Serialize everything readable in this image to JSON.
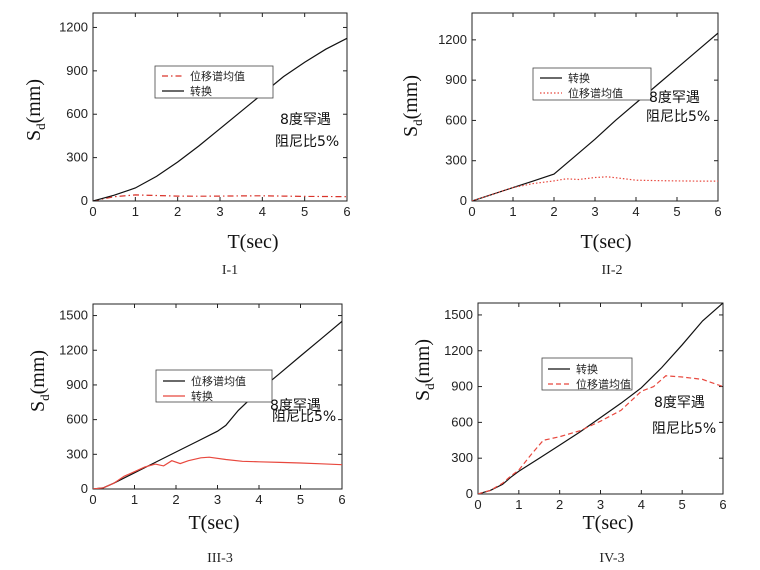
{
  "figure_title": "",
  "colors": {
    "black": "#111111",
    "red": "#e8483e",
    "red_dashdot": "#d9342b"
  },
  "chart_data": [
    {
      "type": "line",
      "caption": "I-1",
      "xlabel": "T(sec)",
      "ylabel": "Sd(mm)",
      "ylabel_main": "S",
      "ylabel_sub": "d",
      "ylabel_rest": "(mm)",
      "xlim": [
        0,
        6
      ],
      "ylim": [
        0,
        1300
      ],
      "xticks": [
        0,
        1,
        2,
        3,
        4,
        5,
        6
      ],
      "yticks": [
        0,
        300,
        600,
        900,
        1200
      ],
      "legend_position": "upper-left",
      "annotation": [
        "8度罕遇",
        "阻尼比5%"
      ],
      "series": [
        {
          "name": "位移谱均值",
          "style": "dashdot",
          "color": "#d9342b",
          "x": [
            0,
            0.5,
            1,
            1.5,
            2,
            2.5,
            3,
            3.5,
            4,
            4.5,
            5,
            5.5,
            6
          ],
          "y": [
            0,
            30,
            42,
            38,
            34,
            33,
            34,
            35,
            36,
            34,
            32,
            31,
            30
          ]
        },
        {
          "name": "转换",
          "style": "solid",
          "color": "#111111",
          "x": [
            0,
            0.5,
            1,
            1.5,
            2,
            2.5,
            3,
            3.5,
            4,
            4.5,
            5,
            5.5,
            6
          ],
          "y": [
            0,
            40,
            90,
            170,
            270,
            380,
            500,
            620,
            740,
            860,
            960,
            1050,
            1125
          ]
        }
      ]
    },
    {
      "type": "line",
      "caption": "II-2",
      "xlabel": "T(sec)",
      "ylabel": "Sd(mm)",
      "ylabel_main": "S",
      "ylabel_sub": "d",
      "ylabel_rest": "(mm)",
      "xlim": [
        0,
        6
      ],
      "ylim": [
        0,
        1400
      ],
      "xticks": [
        0,
        1,
        2,
        3,
        4,
        5,
        6
      ],
      "yticks": [
        0,
        300,
        600,
        900,
        1200
      ],
      "legend_position": "upper-left",
      "annotation": [
        "8度罕遇",
        "阻尼比5%"
      ],
      "series": [
        {
          "name": "转换",
          "style": "solid",
          "color": "#111111",
          "x": [
            0,
            0.5,
            1,
            1.5,
            2,
            2.5,
            3,
            3.5,
            4,
            4.5,
            5,
            5.5,
            6
          ],
          "y": [
            0,
            50,
            100,
            150,
            200,
            330,
            460,
            600,
            730,
            860,
            990,
            1120,
            1250
          ]
        },
        {
          "name": "位移谱均值",
          "style": "dotted",
          "color": "#e8483e",
          "x": [
            0,
            0.5,
            1,
            1.5,
            2,
            2.3,
            2.6,
            3,
            3.3,
            3.6,
            4,
            4.5,
            5,
            5.5,
            6
          ],
          "y": [
            0,
            50,
            100,
            130,
            150,
            165,
            160,
            175,
            180,
            170,
            155,
            152,
            150,
            148,
            148
          ]
        }
      ]
    },
    {
      "type": "line",
      "caption": "III-3",
      "xlabel": "T(sec)",
      "ylabel": "Sd(mm)",
      "ylabel_main": "S",
      "ylabel_sub": "d",
      "ylabel_rest": "(mm)",
      "xlim": [
        0,
        6
      ],
      "ylim": [
        0,
        1600
      ],
      "xticks": [
        0,
        1,
        2,
        3,
        4,
        5,
        6
      ],
      "yticks": [
        0,
        300,
        600,
        900,
        1200,
        1500
      ],
      "legend_position": "center",
      "annotation": [
        "8度罕遇",
        "阻尼比5%"
      ],
      "series": [
        {
          "name": "位移谱均值",
          "style": "solid",
          "color": "#111111",
          "x": [
            0,
            0.25,
            0.5,
            1,
            1.5,
            2,
            2.5,
            3,
            3.2,
            3.5,
            4,
            4.5,
            5,
            5.5,
            6
          ],
          "y": [
            0,
            10,
            50,
            140,
            230,
            320,
            410,
            500,
            550,
            680,
            850,
            1000,
            1150,
            1300,
            1450
          ]
        },
        {
          "name": "转换",
          "style": "solid",
          "color": "#e8483e",
          "x": [
            0,
            0.25,
            0.5,
            0.75,
            1,
            1.25,
            1.5,
            1.7,
            1.9,
            2.1,
            2.3,
            2.6,
            2.8,
            3.2,
            3.6,
            4,
            4.5,
            5,
            5.5,
            6
          ],
          "y": [
            0,
            10,
            50,
            110,
            150,
            190,
            215,
            200,
            245,
            220,
            245,
            270,
            275,
            255,
            240,
            235,
            230,
            225,
            218,
            210
          ]
        }
      ]
    },
    {
      "type": "line",
      "caption": "IV-3",
      "xlabel": "T(sec)",
      "ylabel": "Sd(mm)",
      "ylabel_main": "S",
      "ylabel_sub": "d",
      "ylabel_rest": "(mm)",
      "xlim": [
        0,
        6
      ],
      "ylim": [
        0,
        1600
      ],
      "xticks": [
        0,
        1,
        2,
        3,
        4,
        5,
        6
      ],
      "yticks": [
        0,
        300,
        600,
        900,
        1200,
        1500
      ],
      "legend_position": "upper-left",
      "annotation": [
        "8度罕遇",
        "阻尼比5%"
      ],
      "series": [
        {
          "name": "转换",
          "style": "solid",
          "color": "#111111",
          "x": [
            0,
            0.3,
            0.6,
            0.8,
            1,
            1.5,
            2,
            2.5,
            3,
            3.5,
            4,
            4.5,
            5,
            5.5,
            6
          ],
          "y": [
            0,
            30,
            80,
            140,
            190,
            300,
            410,
            520,
            640,
            760,
            890,
            1060,
            1250,
            1450,
            1600
          ]
        },
        {
          "name": "位移谱均值",
          "style": "dashed",
          "color": "#e8483e",
          "x": [
            0,
            0.3,
            0.6,
            0.8,
            1,
            1.3,
            1.6,
            2,
            2.5,
            3,
            3.5,
            4,
            4.3,
            4.6,
            5,
            5.5,
            6
          ],
          "y": [
            0,
            30,
            90,
            150,
            200,
            330,
            450,
            480,
            530,
            610,
            700,
            860,
            900,
            990,
            980,
            960,
            900
          ]
        }
      ]
    }
  ]
}
